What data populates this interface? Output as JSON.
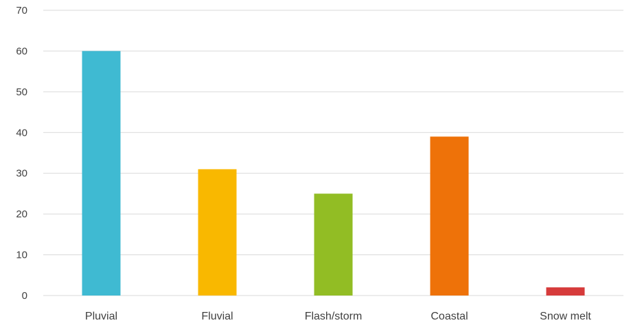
{
  "chart_data": {
    "type": "bar",
    "categories": [
      "Pluvial",
      "Fluvial",
      "Flash/storm",
      "Coastal",
      "Snow melt"
    ],
    "values": [
      60,
      31,
      25,
      39,
      2
    ],
    "colors": [
      "#3fbad2",
      "#f9b800",
      "#92bd24",
      "#ee7209",
      "#d63b3b"
    ],
    "title": "",
    "xlabel": "",
    "ylabel": "",
    "ylim": [
      0,
      70
    ],
    "yticks": [
      0,
      10,
      20,
      30,
      40,
      50,
      60,
      70
    ],
    "grid": true,
    "legend": "none"
  }
}
